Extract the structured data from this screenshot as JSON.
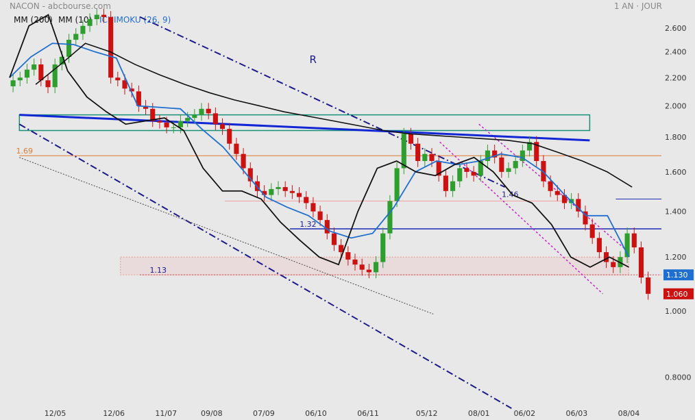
{
  "header": {
    "ticker": "NACON",
    "source": "abcbourse.com",
    "period": "1 AN · JOUR"
  },
  "legend": {
    "mm200": "MM (200)",
    "mm10": "MM (10)",
    "ichimoku": "ICHIMOKU (26, 9)"
  },
  "colors": {
    "background": "#e8e8e8",
    "up": "#2e9e2e",
    "down": "#cc1111",
    "ichimoku": "#1f6fd0",
    "ma": "#111111",
    "channel": "#1a1a8c",
    "trendline": "#1226d6",
    "zone": "#169178",
    "level": "#e07a2e",
    "resistance": "#1a2bb5",
    "pink_channel": "#cc22cc",
    "current_price_bg": "#1f6fd0",
    "last_price_bg": "#cc1111"
  },
  "chart_data": {
    "type": "candlestick",
    "title": "NACON",
    "x_ticks": [
      "12/05",
      "12/06",
      "11/07",
      "09/08",
      "07/09",
      "06/10",
      "06/11",
      "05/12",
      "08/01",
      "06/02",
      "06/03",
      "08/04"
    ],
    "y_ticks": [
      0.8,
      1.0,
      1.2,
      1.4,
      1.6,
      1.8,
      2.0,
      2.2,
      2.4,
      2.6
    ],
    "y_tick_labels": [
      "0.8000",
      "1.000",
      "1.200",
      "1.400",
      "1.600",
      "1.800",
      "2.000",
      "2.200",
      "2.400",
      "2.600"
    ],
    "ylim": [
      0.73,
      2.73
    ],
    "y_scale": "log",
    "grid": false,
    "candle_closes": [
      2.18,
      2.2,
      2.26,
      2.3,
      2.18,
      2.13,
      2.3,
      2.36,
      2.5,
      2.55,
      2.62,
      2.68,
      2.72,
      2.7,
      2.2,
      2.18,
      2.12,
      2.1,
      2.0,
      1.98,
      1.9,
      1.89,
      1.86,
      1.86,
      1.9,
      1.92,
      1.94,
      1.98,
      1.95,
      1.88,
      1.85,
      1.76,
      1.7,
      1.62,
      1.55,
      1.5,
      1.48,
      1.51,
      1.52,
      1.5,
      1.49,
      1.47,
      1.44,
      1.4,
      1.36,
      1.3,
      1.25,
      1.22,
      1.19,
      1.17,
      1.15,
      1.14,
      1.18,
      1.3,
      1.45,
      1.62,
      1.82,
      1.76,
      1.66,
      1.7,
      1.66,
      1.58,
      1.5,
      1.55,
      1.62,
      1.6,
      1.58,
      1.66,
      1.72,
      1.68,
      1.6,
      1.62,
      1.66,
      1.72,
      1.77,
      1.66,
      1.55,
      1.5,
      1.48,
      1.44,
      1.46,
      1.4,
      1.34,
      1.28,
      1.22,
      1.18,
      1.16,
      1.2,
      1.3,
      1.24,
      1.12,
      1.06
    ],
    "current_price": 1.13,
    "last_price": 1.06,
    "current_price_label": "1.130",
    "last_price_label": "1.060",
    "mm200_values": [
      2.15,
      2.3,
      2.47,
      2.4,
      2.3,
      2.22,
      2.15,
      2.09,
      2.04,
      2.0,
      1.96,
      1.93,
      1.9,
      1.87,
      1.84,
      1.82,
      1.81,
      1.8,
      1.79,
      1.78,
      1.76,
      1.71,
      1.66,
      1.6,
      1.52
    ],
    "mm10_values": [
      2.2,
      2.62,
      2.72,
      2.25,
      2.06,
      1.96,
      1.88,
      1.9,
      1.92,
      1.84,
      1.62,
      1.5,
      1.5,
      1.46,
      1.35,
      1.27,
      1.2,
      1.17,
      1.4,
      1.62,
      1.66,
      1.6,
      1.58,
      1.64,
      1.68,
      1.6,
      1.48,
      1.44,
      1.34,
      1.2,
      1.16,
      1.2,
      1.16
    ],
    "ichimoku_values": [
      2.2,
      2.36,
      2.47,
      2.46,
      2.4,
      2.35,
      2.0,
      1.99,
      1.98,
      1.85,
      1.74,
      1.6,
      1.47,
      1.42,
      1.38,
      1.31,
      1.28,
      1.3,
      1.42,
      1.6,
      1.66,
      1.64,
      1.66,
      1.7,
      1.68,
      1.6,
      1.48,
      1.38,
      1.38,
      1.2
    ],
    "channel_top": [
      [
        0.2,
        2.7
      ],
      [
        0.76,
        1.52
      ]
    ],
    "channel_bottom": [
      [
        0.015,
        1.88
      ],
      [
        0.77,
        0.72
      ]
    ],
    "dotted_support": [
      [
        0.015,
        1.68
      ],
      [
        0.65,
        0.99
      ]
    ],
    "blue_trendline": [
      [
        0.015,
        1.94
      ],
      [
        0.89,
        1.78
      ]
    ],
    "zone_rect": [
      [
        0.015,
        1.94
      ],
      [
        0.89,
        1.84
      ]
    ],
    "zone_low_rect": [
      [
        0.17,
        1.2
      ],
      [
        0.95,
        1.13
      ]
    ],
    "pink_channel_a": [
      [
        0.72,
        1.88
      ],
      [
        0.95,
        1.22
      ]
    ],
    "pink_channel_b": [
      [
        0.66,
        1.77
      ],
      [
        0.91,
        1.06
      ]
    ],
    "levels": [
      {
        "value": 1.69,
        "label": "1.69",
        "kind": "orange"
      },
      {
        "value": 1.46,
        "label": "1.46",
        "kind": "blue"
      },
      {
        "value": 1.32,
        "label": "1.32",
        "kind": "blue"
      },
      {
        "value": 1.13,
        "label": "1.13",
        "kind": "red-dotted"
      }
    ],
    "annotations": [
      {
        "text": "R"
      }
    ]
  }
}
